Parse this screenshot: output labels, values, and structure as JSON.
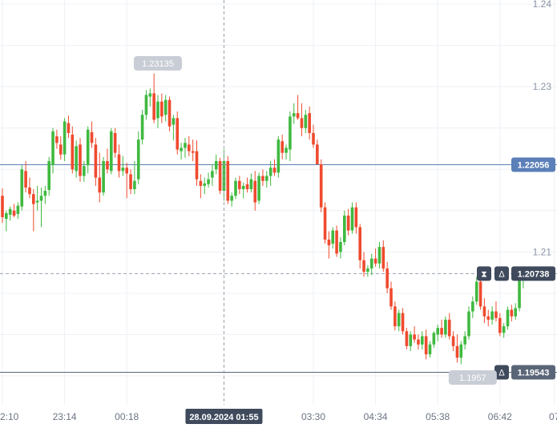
{
  "chart_data": {
    "type": "candlestick",
    "y_ticks": [
      "1.24",
      "1.23",
      "1.21"
    ],
    "ylim": [
      1.1915,
      1.2405
    ],
    "x_ticks": [
      {
        "label": "2:10",
        "i": 0
      },
      {
        "label": "23:14",
        "i": 16
      },
      {
        "label": "00:18",
        "i": 32
      },
      {
        "label": "03:30",
        "i": 80
      },
      {
        "label": "04:34",
        "i": 96
      },
      {
        "label": "05:38",
        "i": 112
      },
      {
        "label": "06:42",
        "i": 128
      },
      {
        "label": "07",
        "i": 142
      }
    ],
    "price_lines": [
      {
        "label": "1.22056",
        "value": 1.22056,
        "color": "#5b7fb8"
      },
      {
        "label": "1.19543",
        "value": 1.19543,
        "color": "#5a6678"
      }
    ],
    "current_price": {
      "label": "1.20738",
      "value": 1.20738
    },
    "crosshair": {
      "date_label": "28.09.2024 01:55",
      "i": 57
    },
    "annotations": [
      {
        "label": "1.23135",
        "value": 1.23135,
        "i": 40
      },
      {
        "label": "1.1957",
        "value": 1.1957,
        "i": 121
      }
    ],
    "candles": [
      [
        1.2168,
        1.2177,
        1.2135,
        1.2142
      ],
      [
        1.214,
        1.215,
        1.2125,
        1.2147
      ],
      [
        1.2145,
        1.2155,
        1.2138,
        1.2152
      ],
      [
        1.215,
        1.2158,
        1.2142,
        1.2144
      ],
      [
        1.2146,
        1.216,
        1.214,
        1.2156
      ],
      [
        1.2155,
        1.2205,
        1.215,
        1.22
      ],
      [
        1.2198,
        1.221,
        1.2172,
        1.2178
      ],
      [
        1.2178,
        1.219,
        1.2165,
        1.217
      ],
      [
        1.217,
        1.2176,
        1.2125,
        1.2158
      ],
      [
        1.216,
        1.218,
        1.215,
        1.2162
      ],
      [
        1.2162,
        1.2178,
        1.213,
        1.2168
      ],
      [
        1.2168,
        1.218,
        1.2158,
        1.2174
      ],
      [
        1.2175,
        1.2215,
        1.2168,
        1.221
      ],
      [
        1.2205,
        1.225,
        1.2195,
        1.2246
      ],
      [
        1.224,
        1.2248,
        1.2225,
        1.2232
      ],
      [
        1.223,
        1.224,
        1.2212,
        1.2218
      ],
      [
        1.2218,
        1.2262,
        1.221,
        1.2258
      ],
      [
        1.2256,
        1.2265,
        1.2238,
        1.2244
      ],
      [
        1.2242,
        1.2252,
        1.2195,
        1.22
      ],
      [
        1.2198,
        1.2235,
        1.219,
        1.2228
      ],
      [
        1.223,
        1.2238,
        1.2185,
        1.2192
      ],
      [
        1.2192,
        1.221,
        1.2185,
        1.2204
      ],
      [
        1.2205,
        1.2252,
        1.2195,
        1.2248
      ],
      [
        1.2245,
        1.2258,
        1.2226,
        1.2232
      ],
      [
        1.223,
        1.2238,
        1.218,
        1.219
      ],
      [
        1.219,
        1.222,
        1.216,
        1.2172
      ],
      [
        1.2172,
        1.2215,
        1.2168,
        1.221
      ],
      [
        1.221,
        1.2225,
        1.2195,
        1.22
      ],
      [
        1.2198,
        1.225,
        1.2194,
        1.2246
      ],
      [
        1.2244,
        1.225,
        1.2214,
        1.222
      ],
      [
        1.2218,
        1.223,
        1.219,
        1.2198
      ],
      [
        1.2198,
        1.2216,
        1.2192,
        1.2202
      ],
      [
        1.2202,
        1.2208,
        1.2165,
        1.2195
      ],
      [
        1.2194,
        1.22,
        1.217,
        1.2176
      ],
      [
        1.2176,
        1.221,
        1.217,
        1.2186
      ],
      [
        1.2188,
        1.2246,
        1.2182,
        1.2236
      ],
      [
        1.2236,
        1.2272,
        1.223,
        1.2266
      ],
      [
        1.2266,
        1.2296,
        1.226,
        1.229
      ],
      [
        1.2288,
        1.2298,
        1.2276,
        1.2292
      ],
      [
        1.2292,
        1.2316,
        1.2256,
        1.226
      ],
      [
        1.2262,
        1.229,
        1.225,
        1.2282
      ],
      [
        1.2282,
        1.2292,
        1.2256,
        1.2264
      ],
      [
        1.2266,
        1.229,
        1.2258,
        1.2284
      ],
      [
        1.2284,
        1.2288,
        1.2246,
        1.2252
      ],
      [
        1.2254,
        1.2266,
        1.2235,
        1.2262
      ],
      [
        1.2262,
        1.227,
        1.2218,
        1.2224
      ],
      [
        1.2222,
        1.2232,
        1.2212,
        1.2226
      ],
      [
        1.2226,
        1.2238,
        1.2214,
        1.2232
      ],
      [
        1.223,
        1.224,
        1.2216,
        1.2222
      ],
      [
        1.2222,
        1.2236,
        1.221,
        1.222
      ],
      [
        1.2222,
        1.2235,
        1.218,
        1.2188
      ],
      [
        1.2186,
        1.2194,
        1.2165,
        1.218
      ],
      [
        1.218,
        1.219,
        1.217,
        1.2183
      ],
      [
        1.2182,
        1.2196,
        1.2178,
        1.2188
      ],
      [
        1.219,
        1.2206,
        1.218,
        1.2198
      ],
      [
        1.22,
        1.2218,
        1.2194,
        1.221
      ],
      [
        1.221,
        1.2214,
        1.217,
        1.2174
      ],
      [
        1.2174,
        1.2224,
        1.2162,
        1.221
      ],
      [
        1.221,
        1.2216,
        1.2158,
        1.2162
      ],
      [
        1.2162,
        1.2172,
        1.2155,
        1.2168
      ],
      [
        1.2168,
        1.219,
        1.2164,
        1.2186
      ],
      [
        1.2186,
        1.2192,
        1.217,
        1.2176
      ],
      [
        1.2176,
        1.2184,
        1.2165,
        1.218
      ],
      [
        1.2182,
        1.219,
        1.2172,
        1.2176
      ],
      [
        1.2176,
        1.2195,
        1.2172,
        1.2188
      ],
      [
        1.2186,
        1.2198,
        1.215,
        1.216
      ],
      [
        1.2162,
        1.2196,
        1.2158,
        1.2192
      ],
      [
        1.2192,
        1.22,
        1.218,
        1.2186
      ],
      [
        1.2186,
        1.2198,
        1.2178,
        1.2192
      ],
      [
        1.2192,
        1.221,
        1.218,
        1.2202
      ],
      [
        1.2202,
        1.2212,
        1.2192,
        1.2196
      ],
      [
        1.2196,
        1.224,
        1.219,
        1.2236
      ],
      [
        1.2234,
        1.2242,
        1.2212,
        1.222
      ],
      [
        1.222,
        1.223,
        1.2212,
        1.2226
      ],
      [
        1.2224,
        1.227,
        1.221,
        1.2264
      ],
      [
        1.2264,
        1.228,
        1.2255,
        1.2268
      ],
      [
        1.2268,
        1.229,
        1.226,
        1.2262
      ],
      [
        1.2262,
        1.228,
        1.224,
        1.225
      ],
      [
        1.225,
        1.2272,
        1.2244,
        1.2266
      ],
      [
        1.2268,
        1.2276,
        1.2236,
        1.2244
      ],
      [
        1.2244,
        1.2254,
        1.2226,
        1.223
      ],
      [
        1.223,
        1.2236,
        1.221,
        1.2206
      ],
      [
        1.2206,
        1.2212,
        1.2148,
        1.2154
      ],
      [
        1.2154,
        1.216,
        1.211,
        1.2115
      ],
      [
        1.2115,
        1.2125,
        1.2092,
        1.2108
      ],
      [
        1.211,
        1.213,
        1.2104,
        1.2126
      ],
      [
        1.2126,
        1.2132,
        1.2094,
        1.2098
      ],
      [
        1.21,
        1.2118,
        1.2092,
        1.2112
      ],
      [
        1.2112,
        1.215,
        1.2108,
        1.2144
      ],
      [
        1.2144,
        1.2152,
        1.212,
        1.2126
      ],
      [
        1.2126,
        1.216,
        1.2122,
        1.2154
      ],
      [
        1.2154,
        1.216,
        1.2122,
        1.213
      ],
      [
        1.213,
        1.2134,
        1.208,
        1.209
      ],
      [
        1.209,
        1.21,
        1.207,
        1.2076
      ],
      [
        1.2076,
        1.2084,
        1.207,
        1.208
      ],
      [
        1.208,
        1.2098,
        1.2072,
        1.2092
      ],
      [
        1.2092,
        1.2104,
        1.2082,
        1.2086
      ],
      [
        1.2086,
        1.2112,
        1.208,
        1.2106
      ],
      [
        1.2106,
        1.2114,
        1.2076,
        1.208
      ],
      [
        1.208,
        1.2088,
        1.205,
        1.2056
      ],
      [
        1.2056,
        1.2064,
        1.203,
        1.2034
      ],
      [
        1.2034,
        1.204,
        1.2005,
        1.201
      ],
      [
        1.201,
        1.203,
        1.2004,
        1.2026
      ],
      [
        1.2026,
        1.2032,
        1.2,
        1.2004
      ],
      [
        1.2004,
        1.2008,
        1.1982,
        1.1986
      ],
      [
        1.1986,
        1.2004,
        1.198,
        1.2
      ],
      [
        1.2,
        1.201,
        1.199,
        1.1994
      ],
      [
        1.1994,
        1.2,
        1.1982,
        1.1988
      ],
      [
        1.1988,
        1.2004,
        1.1982,
        1.1998
      ],
      [
        1.1998,
        1.2006,
        1.197,
        1.1976
      ],
      [
        1.1976,
        1.1992,
        1.1972,
        1.1988
      ],
      [
        1.1988,
        1.2004,
        1.1984,
        1.2002
      ],
      [
        1.2,
        1.2012,
        1.1992,
        1.2008
      ],
      [
        1.2008,
        1.2018,
        1.1996,
        1.2
      ],
      [
        1.2,
        1.2022,
        1.1996,
        1.2018
      ],
      [
        1.2018,
        1.2026,
        1.1994,
        1.1998
      ],
      [
        1.1998,
        1.2004,
        1.198,
        1.1986
      ],
      [
        1.1986,
        1.2,
        1.1966,
        1.1972
      ],
      [
        1.1972,
        1.1992,
        1.1964,
        1.1988
      ],
      [
        1.1988,
        1.2004,
        1.1982,
        1.1998
      ],
      [
        1.1998,
        1.2034,
        1.1994,
        1.2028
      ],
      [
        1.2028,
        1.2046,
        1.202,
        1.204
      ],
      [
        1.204,
        1.207,
        1.2036,
        1.2064
      ],
      [
        1.2064,
        1.2072,
        1.203,
        1.2034
      ],
      [
        1.2034,
        1.2044,
        1.2014,
        1.2022
      ],
      [
        1.2022,
        1.203,
        1.201,
        1.2018
      ],
      [
        1.2018,
        1.2034,
        1.2012,
        1.2028
      ],
      [
        1.2028,
        1.204,
        1.2016,
        1.202
      ],
      [
        1.202,
        1.2026,
        1.1998,
        1.2002
      ],
      [
        1.2002,
        1.2014,
        1.1996,
        1.201
      ],
      [
        1.201,
        1.2034,
        1.2006,
        1.203
      ],
      [
        1.203,
        1.2036,
        1.2016,
        1.2022
      ],
      [
        1.2022,
        1.2038,
        1.2018,
        1.2032
      ],
      [
        1.2032,
        1.2074,
        1.2028,
        1.2068
      ],
      [
        1.2068,
        1.2078,
        1.2056,
        1.2074
      ]
    ]
  }
}
